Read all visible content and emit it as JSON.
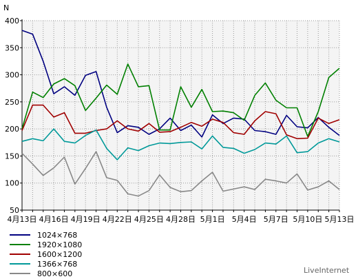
{
  "chart_data": {
    "type": "line",
    "ylabel": "N",
    "ylim": [
      50,
      400
    ],
    "yticks": [
      50,
      100,
      150,
      200,
      250,
      300,
      350,
      400
    ],
    "grid": true,
    "legend_placement": "bottom-left",
    "x": [
      "4月13日",
      "4月14日",
      "4月15日",
      "4月16日",
      "4月17日",
      "4月18日",
      "4月19日",
      "4月20日",
      "4月21日",
      "4月22日",
      "4月23日",
      "4月24日",
      "4月25日",
      "4月26日",
      "4月27日",
      "4月28日",
      "4月29日",
      "4月30日",
      "5月1日",
      "5月2日",
      "5月3日",
      "5月4日",
      "5月5日",
      "5月6日",
      "5月7日",
      "5月8日",
      "5月9日",
      "5月10日",
      "5月11日",
      "5月12日",
      "5月13日"
    ],
    "xtick_labels": [
      "4月13日",
      "4月16日",
      "4月19日",
      "4月22日",
      "4月25日",
      "4月28日",
      "5月1日",
      "5月4日",
      "5月7日",
      "5月10日",
      "5月13日"
    ],
    "series": [
      {
        "name": "1024×768",
        "color": "#000080",
        "values": [
          382,
          375,
          325,
          265,
          278,
          262,
          299,
          306,
          240,
          193,
          206,
          203,
          190,
          200,
          220,
          197,
          207,
          185,
          226,
          210,
          220,
          218,
          197,
          195,
          190,
          225,
          204,
          202,
          221,
          203,
          188
        ]
      },
      {
        "name": "1920×1080",
        "color": "#008000",
        "values": [
          200,
          268,
          258,
          283,
          293,
          280,
          234,
          257,
          281,
          264,
          320,
          278,
          280,
          198,
          198,
          278,
          240,
          273,
          232,
          233,
          230,
          216,
          262,
          285,
          253,
          239,
          239,
          186,
          232,
          295,
          312
        ]
      },
      {
        "name": "1600×1200",
        "color": "#a00000",
        "values": [
          197,
          244,
          244,
          222,
          230,
          192,
          192,
          197,
          200,
          215,
          200,
          196,
          210,
          194,
          195,
          203,
          212,
          205,
          218,
          212,
          193,
          190,
          215,
          232,
          228,
          189,
          182,
          183,
          220,
          210,
          217
        ]
      },
      {
        "name": "1366×768",
        "color": "#009999",
        "values": [
          177,
          182,
          178,
          200,
          177,
          174,
          188,
          198,
          164,
          143,
          165,
          160,
          169,
          174,
          173,
          175,
          176,
          163,
          187,
          166,
          164,
          155,
          162,
          174,
          172,
          187,
          156,
          158,
          174,
          182,
          176
        ]
      },
      {
        "name": "800×600",
        "color": "#888888",
        "values": [
          155,
          135,
          114,
          128,
          148,
          98,
          127,
          158,
          110,
          105,
          80,
          76,
          86,
          115,
          92,
          84,
          86,
          104,
          120,
          85,
          89,
          93,
          88,
          107,
          104,
          100,
          117,
          87,
          93,
          104,
          88
        ]
      }
    ]
  },
  "brand": {
    "text": "LiveInternet"
  }
}
